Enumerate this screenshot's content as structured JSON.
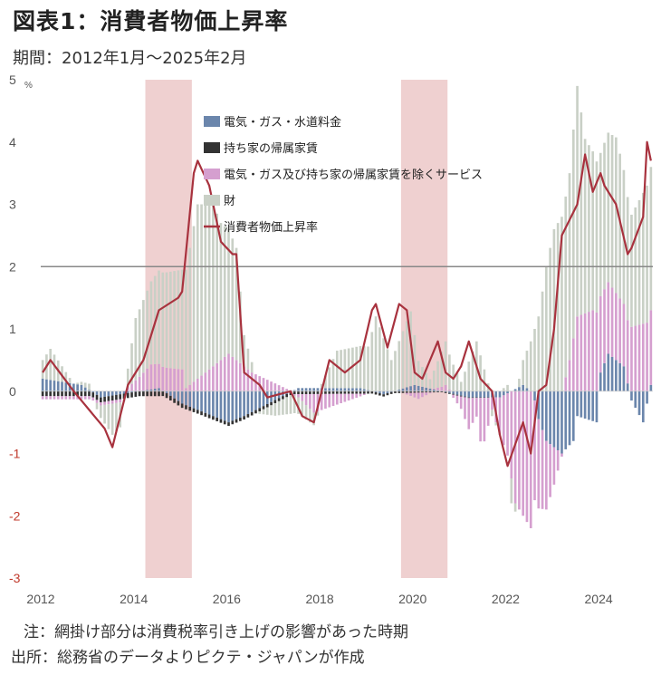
{
  "title": "図表1：消費者物価上昇率",
  "period": "期間：2012年1月～2025年2月",
  "note": "注：網掛け部分は消費税率引き上げの影響があった時期",
  "source": "出所：総務省のデータよりピクテ・ジャパンが作成",
  "chart_data": {
    "type": "bar",
    "stacked": true,
    "unit": "%",
    "ylim": [
      -3,
      5
    ],
    "yticks": [
      5,
      4,
      3,
      2,
      1,
      0,
      -1,
      -2,
      -3
    ],
    "xticks": [
      "2012",
      "2014",
      "2016",
      "2018",
      "2020",
      "2022",
      "2024"
    ],
    "x_start": "2012-01",
    "reference_line": 2,
    "shaded_periods": [
      [
        "2014-04",
        "2015-03"
      ],
      [
        "2019-10",
        "2020-09"
      ]
    ],
    "colors": {
      "energy": "#6b86ac",
      "rent": "#333333",
      "services": "#d59fcf",
      "goods": "#c9d0c6",
      "cpi": "#a8323e",
      "shade": "#efd0d0",
      "refline": "#888888"
    },
    "series": [
      {
        "name": "電気・ガス・水道料金",
        "key": "energy",
        "knots": [
          [
            0,
            0.2
          ],
          [
            10,
            0.1
          ],
          [
            15,
            -0.1
          ],
          [
            30,
            0.05
          ],
          [
            36,
            -0.2
          ],
          [
            48,
            -0.5
          ],
          [
            52,
            -0.4
          ],
          [
            66,
            0.05
          ],
          [
            82,
            0.05
          ],
          [
            88,
            -0.05
          ],
          [
            96,
            0.1
          ],
          [
            110,
            -0.1
          ],
          [
            118,
            -0.1
          ],
          [
            124,
            0.1
          ],
          [
            126,
            0.0
          ],
          [
            127,
            -0.15
          ],
          [
            128,
            -0.45
          ],
          [
            130,
            -0.8
          ],
          [
            134,
            -1.0
          ],
          [
            137,
            -0.8
          ],
          [
            138,
            -0.4
          ],
          [
            143,
            -0.5
          ],
          [
            144,
            0.3
          ],
          [
            146,
            0.6
          ],
          [
            150,
            0.4
          ],
          [
            152,
            -0.15
          ],
          [
            155,
            -0.5
          ],
          [
            157,
            0.1
          ]
        ]
      },
      {
        "name": "持ち家の帰属家賃",
        "key": "rent",
        "knots": [
          [
            0,
            -0.08
          ],
          [
            30,
            -0.08
          ],
          [
            40,
            -0.06
          ],
          [
            84,
            -0.04
          ],
          [
            100,
            -0.02
          ],
          [
            120,
            0.0
          ],
          [
            157,
            0.0
          ]
        ]
      },
      {
        "name": "電気・ガス及び持ち家の帰属家賃を除くサービス",
        "key": "services",
        "knots": [
          [
            0,
            -0.05
          ],
          [
            12,
            -0.05
          ],
          [
            20,
            -0.05
          ],
          [
            28,
            0.4
          ],
          [
            36,
            0.35
          ],
          [
            37,
            0.05
          ],
          [
            42,
            0.3
          ],
          [
            48,
            0.6
          ],
          [
            54,
            0.3
          ],
          [
            66,
            -0.05
          ],
          [
            70,
            -0.3
          ],
          [
            84,
            0.0
          ],
          [
            93,
            0.0
          ],
          [
            97,
            -0.1
          ],
          [
            104,
            0.1
          ],
          [
            108,
            -0.2
          ],
          [
            110,
            -0.5
          ],
          [
            112,
            -0.3
          ],
          [
            113,
            -0.7
          ],
          [
            114,
            -0.7
          ],
          [
            116,
            -0.2
          ],
          [
            120,
            -1.0
          ],
          [
            122,
            -1.8
          ],
          [
            126,
            -2.2
          ],
          [
            127,
            -1.6
          ],
          [
            130,
            -1.1
          ],
          [
            132,
            -0.6
          ],
          [
            136,
            0.5
          ],
          [
            138,
            1.2
          ],
          [
            142,
            1.3
          ],
          [
            150,
            1.0
          ],
          [
            156,
            1.1
          ],
          [
            157,
            1.2
          ]
        ]
      },
      {
        "name": "財",
        "key": "goods",
        "knots": [
          [
            0,
            0.3
          ],
          [
            2,
            0.5
          ],
          [
            8,
            0.0
          ],
          [
            12,
            0.1
          ],
          [
            18,
            -0.5
          ],
          [
            20,
            -0.4
          ],
          [
            24,
            1.0
          ],
          [
            30,
            1.5
          ],
          [
            36,
            1.6
          ],
          [
            40,
            2.8
          ],
          [
            44,
            2.6
          ],
          [
            46,
            2.2
          ],
          [
            50,
            1.8
          ],
          [
            52,
            0.5
          ],
          [
            55,
            0.0
          ],
          [
            60,
            -0.2
          ],
          [
            64,
            -0.3
          ],
          [
            70,
            -0.2
          ],
          [
            76,
            0.6
          ],
          [
            84,
            0.7
          ],
          [
            86,
            1.2
          ],
          [
            90,
            0.5
          ],
          [
            95,
            1.2
          ],
          [
            97,
            0.4
          ],
          [
            100,
            0.15
          ],
          [
            104,
            0.7
          ],
          [
            108,
            0.15
          ],
          [
            112,
            0.8
          ],
          [
            116,
            -0.1
          ],
          [
            120,
            0.1
          ],
          [
            121,
            -0.4
          ],
          [
            124,
            0.4
          ],
          [
            128,
            1.2
          ],
          [
            130,
            2.0
          ],
          [
            132,
            2.6
          ],
          [
            136,
            3.0
          ],
          [
            138,
            3.7
          ],
          [
            140,
            2.8
          ],
          [
            144,
            2.3
          ],
          [
            148,
            2.5
          ],
          [
            152,
            1.8
          ],
          [
            156,
            2.2
          ],
          [
            157,
            2.3
          ]
        ]
      },
      {
        "name": "消費者物価上昇率",
        "key": "cpi",
        "type": "line",
        "knots": [
          [
            0,
            0.3
          ],
          [
            2,
            0.5
          ],
          [
            8,
            0.0
          ],
          [
            12,
            -0.3
          ],
          [
            16,
            -0.6
          ],
          [
            18,
            -0.9
          ],
          [
            22,
            0.1
          ],
          [
            26,
            0.5
          ],
          [
            30,
            1.3
          ],
          [
            35,
            1.5
          ],
          [
            36,
            1.6
          ],
          [
            39,
            3.5
          ],
          [
            40,
            3.7
          ],
          [
            43,
            3.3
          ],
          [
            46,
            2.4
          ],
          [
            49,
            2.2
          ],
          [
            50,
            2.2
          ],
          [
            52,
            0.3
          ],
          [
            56,
            0.1
          ],
          [
            58,
            -0.1
          ],
          [
            64,
            0.0
          ],
          [
            67,
            -0.4
          ],
          [
            70,
            -0.5
          ],
          [
            74,
            0.5
          ],
          [
            78,
            0.3
          ],
          [
            82,
            0.5
          ],
          [
            85,
            1.3
          ],
          [
            86,
            1.4
          ],
          [
            89,
            0.7
          ],
          [
            92,
            1.4
          ],
          [
            94,
            1.3
          ],
          [
            96,
            0.3
          ],
          [
            98,
            0.2
          ],
          [
            100,
            0.5
          ],
          [
            102,
            0.8
          ],
          [
            104,
            0.3
          ],
          [
            106,
            0.2
          ],
          [
            108,
            0.4
          ],
          [
            110,
            0.8
          ],
          [
            113,
            0.2
          ],
          [
            116,
            0.0
          ],
          [
            118,
            -0.7
          ],
          [
            120,
            -1.2
          ],
          [
            124,
            -0.5
          ],
          [
            126,
            -1.0
          ],
          [
            127,
            -0.5
          ],
          [
            128,
            0.0
          ],
          [
            130,
            0.1
          ],
          [
            132,
            1.0
          ],
          [
            134,
            2.5
          ],
          [
            138,
            3.0
          ],
          [
            140,
            3.8
          ],
          [
            142,
            3.2
          ],
          [
            144,
            3.5
          ],
          [
            145,
            3.3
          ],
          [
            148,
            3.0
          ],
          [
            151,
            2.2
          ],
          [
            152,
            2.3
          ],
          [
            155,
            2.8
          ],
          [
            156,
            4.0
          ],
          [
            157,
            3.7
          ]
        ]
      }
    ]
  },
  "legend": {
    "items": [
      {
        "label": "電気・ガス・水道料金",
        "color": "#6b86ac",
        "kind": "box"
      },
      {
        "label": "持ち家の帰属家賃",
        "color": "#333333",
        "kind": "box"
      },
      {
        "label": "電気・ガス及び持ち家の帰属家賃を除くサービス",
        "color": "#d59fcf",
        "kind": "box"
      },
      {
        "label": "財",
        "color": "#c9d0c6",
        "kind": "box"
      },
      {
        "label": "消費者物価上昇率",
        "color": "#a8323e",
        "kind": "line"
      }
    ]
  }
}
